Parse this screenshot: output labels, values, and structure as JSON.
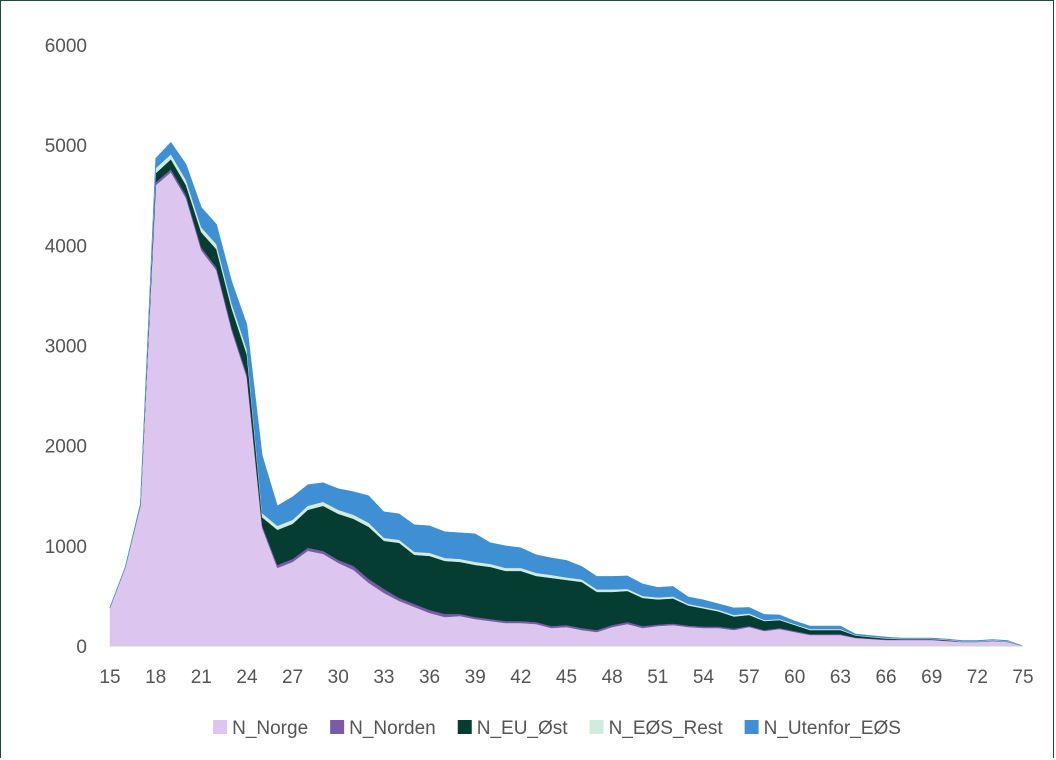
{
  "chart_data": {
    "type": "area",
    "stacked": true,
    "title": "",
    "xlabel": "",
    "ylabel": "",
    "ylim": [
      0,
      6000
    ],
    "yticks": [
      0,
      1000,
      2000,
      3000,
      4000,
      5000,
      6000
    ],
    "xlim": [
      15,
      75
    ],
    "xticks": [
      15,
      18,
      21,
      24,
      27,
      30,
      33,
      36,
      39,
      42,
      45,
      48,
      51,
      54,
      57,
      60,
      63,
      66,
      69,
      72,
      75
    ],
    "grid": false,
    "legend_position": "bottom",
    "x": [
      15,
      16,
      17,
      18,
      19,
      20,
      21,
      22,
      23,
      24,
      25,
      26,
      27,
      28,
      29,
      30,
      31,
      32,
      33,
      34,
      35,
      36,
      37,
      38,
      39,
      40,
      41,
      42,
      43,
      44,
      45,
      46,
      47,
      48,
      49,
      50,
      51,
      52,
      53,
      54,
      55,
      56,
      57,
      58,
      59,
      60,
      61,
      62,
      63,
      64,
      65,
      66,
      67,
      68,
      69,
      70,
      71,
      72,
      73,
      74,
      75
    ],
    "series": [
      {
        "name": "N_Norge",
        "color": "#dcc6f0",
        "values": [
          380,
          780,
          1400,
          4600,
          4730,
          4470,
          3950,
          3750,
          3150,
          2680,
          1180,
          780,
          840,
          950,
          920,
          830,
          760,
          630,
          530,
          450,
          390,
          330,
          290,
          300,
          270,
          250,
          230,
          230,
          220,
          180,
          190,
          160,
          140,
          190,
          220,
          180,
          200,
          210,
          190,
          180,
          180,
          160,
          190,
          150,
          170,
          140,
          110,
          110,
          110,
          80,
          70,
          60,
          60,
          60,
          60,
          50,
          40,
          40,
          50,
          40,
          0
        ]
      },
      {
        "name": "N_Norden",
        "color": "#7a5ca6",
        "values": [
          5,
          5,
          8,
          30,
          30,
          30,
          30,
          30,
          30,
          30,
          25,
          30,
          30,
          30,
          30,
          30,
          40,
          40,
          40,
          30,
          30,
          30,
          30,
          20,
          20,
          20,
          20,
          20,
          20,
          20,
          20,
          20,
          20,
          20,
          20,
          20,
          15,
          15,
          15,
          15,
          15,
          15,
          10,
          10,
          10,
          10,
          10,
          10,
          10,
          5,
          5,
          5,
          5,
          5,
          5,
          5,
          5,
          5,
          5,
          5,
          0
        ]
      },
      {
        "name": "N_EU_Øst",
        "color": "#053d32",
        "values": [
          0,
          0,
          5,
          90,
          100,
          100,
          150,
          180,
          190,
          200,
          80,
          350,
          350,
          380,
          450,
          460,
          470,
          520,
          480,
          550,
          490,
          540,
          530,
          520,
          520,
          520,
          500,
          500,
          460,
          480,
          450,
          460,
          380,
          330,
          310,
          280,
          250,
          250,
          200,
          180,
          150,
          120,
          110,
          90,
          80,
          60,
          40,
          40,
          40,
          20,
          15,
          10,
          5,
          5,
          5,
          5,
          0,
          0,
          0,
          0,
          0
        ]
      },
      {
        "name": "N_EØS_Rest",
        "color": "#d1ebdc",
        "values": [
          0,
          0,
          5,
          50,
          50,
          50,
          50,
          50,
          50,
          50,
          40,
          40,
          40,
          40,
          40,
          40,
          40,
          40,
          30,
          30,
          30,
          30,
          30,
          30,
          30,
          30,
          30,
          30,
          30,
          30,
          25,
          25,
          25,
          25,
          20,
          20,
          20,
          20,
          15,
          15,
          15,
          15,
          15,
          10,
          10,
          10,
          10,
          10,
          10,
          5,
          5,
          5,
          5,
          5,
          5,
          5,
          5,
          5,
          5,
          5,
          0
        ]
      },
      {
        "name": "N_Utenfor_EØS",
        "color": "#3e8fd4",
        "values": [
          0,
          0,
          0,
          100,
          120,
          160,
          200,
          200,
          220,
          250,
          580,
          200,
          230,
          210,
          190,
          210,
          230,
          270,
          260,
          260,
          270,
          270,
          260,
          260,
          280,
          210,
          220,
          200,
          180,
          170,
          170,
          130,
          130,
          130,
          130,
          120,
          100,
          100,
          70,
          70,
          60,
          70,
          60,
          55,
          40,
          30,
          30,
          30,
          30,
          10,
          10,
          10,
          5,
          5,
          5,
          5,
          5,
          5,
          5,
          5,
          0
        ]
      }
    ]
  }
}
